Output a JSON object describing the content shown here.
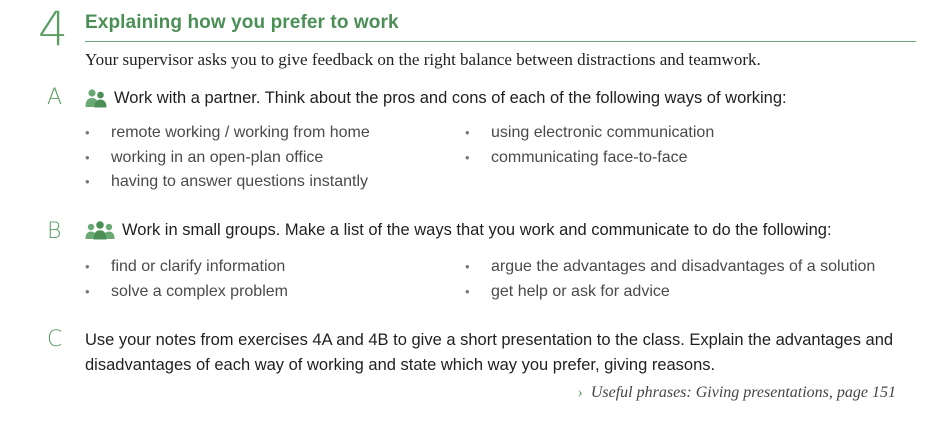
{
  "section": {
    "number": "4",
    "title": "Explaining how you prefer to work",
    "intro": "Your supervisor asks you to give feedback on the right balance between distractions and teamwork.",
    "accent_color": "#5a9e62"
  },
  "exercise_a": {
    "letter": "A",
    "icon": "pair-work-icon",
    "instruction": "Work with a partner. Think about the pros and cons of each of the following ways of working:",
    "bullets_left": [
      "remote working / working from home",
      "working in an open-plan office",
      "having to answer questions instantly"
    ],
    "bullets_right": [
      "using electronic communication",
      "communicating face-to-face"
    ]
  },
  "exercise_b": {
    "letter": "B",
    "icon": "group-work-icon",
    "instruction": "Work in small groups. Make a list of the ways that you work and communicate to do the following:",
    "bullets_left": [
      "find or clarify information",
      "solve a complex problem"
    ],
    "bullets_right": [
      "argue the advantages and disadvantages of a solution",
      "get help or ask for advice"
    ]
  },
  "exercise_c": {
    "letter": "C",
    "instruction": "Use your notes from exercises 4A and 4B to give a short presentation to the class. Explain the advantages and disadvantages of each way of working and state which way you prefer, giving reasons."
  },
  "useful_phrases": {
    "chevron": "›",
    "text": "Useful phrases: Giving presentations, page 151"
  }
}
